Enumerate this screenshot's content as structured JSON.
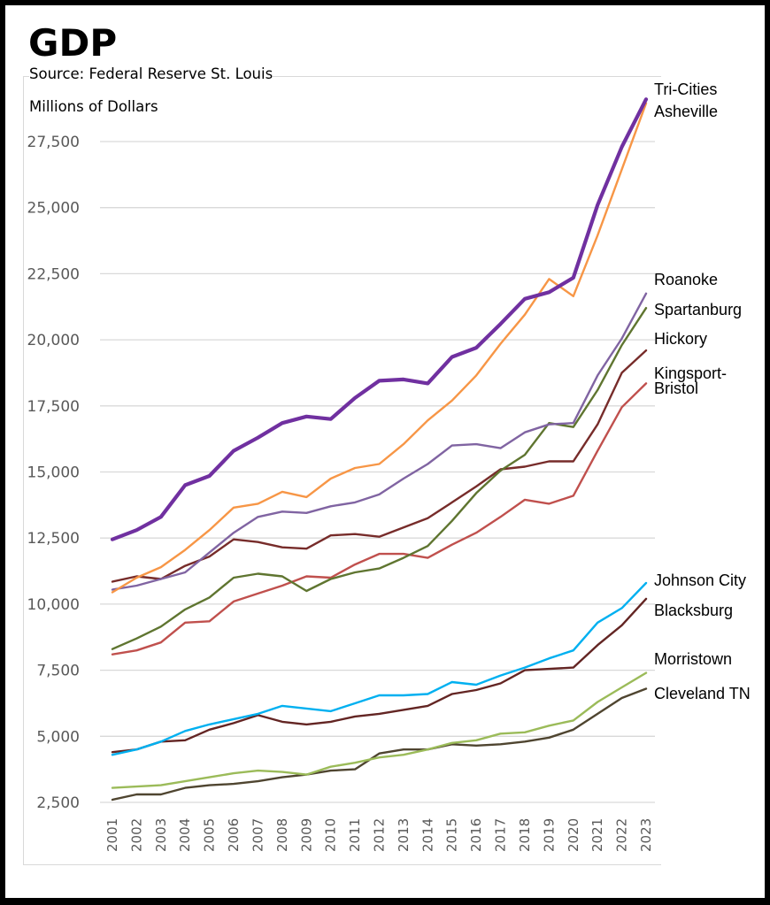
{
  "header": {
    "title": "GDP",
    "source": "Source: Federal Reserve St. Louis",
    "units": "Millions of Dollars"
  },
  "chart_data": {
    "type": "line",
    "title": "GDP",
    "subtitle": "Source: Federal Reserve St. Louis",
    "xlabel": "",
    "ylabel": "Millions of Dollars",
    "ylim": [
      2500,
      30000
    ],
    "yticks": [
      2500,
      5000,
      7500,
      10000,
      12500,
      15000,
      17500,
      20000,
      22500,
      25000,
      27500
    ],
    "ytick_labels": [
      "2,500",
      "5,000",
      "7,500",
      "10,000",
      "12,500",
      "15,000",
      "17,500",
      "20,000",
      "22,500",
      "25,000",
      "27,500"
    ],
    "grid": true,
    "legend": "direct labels at right end of each line",
    "x": [
      "2001",
      "2002",
      "2003",
      "2004",
      "2005",
      "2006",
      "2007",
      "2008",
      "2009",
      "2010",
      "2011",
      "2012",
      "2013",
      "2014",
      "2015",
      "2016",
      "2017",
      "2018",
      "2019",
      "2020",
      "2021",
      "2022",
      "2023"
    ],
    "series": [
      {
        "name": "Tri-Cities",
        "color": "#7030a0",
        "width": "thick",
        "label_lines": [
          "Tri-Cities"
        ],
        "values": [
          12450,
          12800,
          13300,
          14500,
          14850,
          15800,
          16300,
          16850,
          17100,
          17000,
          17800,
          18450,
          18500,
          18350,
          19350,
          19700,
          20600,
          21550,
          21800,
          22350,
          25100,
          27300,
          29100
        ]
      },
      {
        "name": "Asheville",
        "color": "#f79646",
        "width": "normal",
        "label_lines": [
          "Asheville"
        ],
        "values": [
          10450,
          11000,
          11400,
          12050,
          12800,
          13650,
          13800,
          14250,
          14050,
          14750,
          15150,
          15300,
          16050,
          16950,
          17700,
          18650,
          19850,
          20950,
          22300,
          21650,
          23950,
          26450,
          28950
        ]
      },
      {
        "name": "Roanoke",
        "color": "#8064a2",
        "width": "normal",
        "label_lines": [
          "Roanoke"
        ],
        "values": [
          10550,
          10700,
          10950,
          11200,
          11950,
          12700,
          13300,
          13500,
          13450,
          13700,
          13850,
          14150,
          14750,
          15300,
          16000,
          16050,
          15900,
          16500,
          16800,
          16850,
          18650,
          20050,
          21750
        ]
      },
      {
        "name": "Spartanburg",
        "color": "#5f7530",
        "width": "normal",
        "label_lines": [
          "Spartanburg"
        ],
        "values": [
          8300,
          8700,
          9150,
          9800,
          10250,
          11000,
          11150,
          11050,
          10500,
          10950,
          11200,
          11350,
          11750,
          12200,
          13150,
          14200,
          15050,
          15650,
          16850,
          16700,
          18100,
          19800,
          21200
        ]
      },
      {
        "name": "Hickory",
        "color": "#772c2a",
        "width": "normal",
        "label_lines": [
          "Hickory"
        ],
        "values": [
          10850,
          11050,
          10950,
          11450,
          11800,
          12450,
          12350,
          12150,
          12100,
          12600,
          12650,
          12550,
          12900,
          13250,
          13850,
          14450,
          15100,
          15200,
          15400,
          15400,
          16800,
          18750,
          19600
        ]
      },
      {
        "name": "Kingsport-Bristol",
        "color": "#c0504d",
        "width": "normal",
        "label_lines": [
          "Kingsport-",
          "Bristol"
        ],
        "values": [
          8100,
          8250,
          8550,
          9300,
          9350,
          10100,
          10400,
          10700,
          11050,
          11000,
          11500,
          11900,
          11900,
          11750,
          12250,
          12700,
          13300,
          13950,
          13800,
          14100,
          15800,
          17450,
          18350
        ]
      },
      {
        "name": "Johnson City",
        "color": "#00b0f0",
        "width": "normal",
        "label_lines": [
          "Johnson City"
        ],
        "values": [
          4300,
          4500,
          4800,
          5200,
          5450,
          5650,
          5850,
          6150,
          6050,
          5950,
          6250,
          6550,
          6550,
          6600,
          7050,
          6950,
          7300,
          7600,
          7950,
          8250,
          9300,
          9850,
          10800
        ]
      },
      {
        "name": "Blacksburg",
        "color": "#632523",
        "width": "normal",
        "label_lines": [
          "Blacksburg"
        ],
        "values": [
          4400,
          4500,
          4800,
          4850,
          5250,
          5500,
          5800,
          5550,
          5450,
          5550,
          5750,
          5850,
          6000,
          6150,
          6600,
          6750,
          7000,
          7500,
          7550,
          7600,
          8450,
          9200,
          10200
        ]
      },
      {
        "name": "Morristown",
        "color": "#9bbb59",
        "width": "normal",
        "label_lines": [
          "Morristown"
        ],
        "values": [
          3050,
          3100,
          3150,
          3300,
          3450,
          3600,
          3700,
          3650,
          3550,
          3850,
          4000,
          4200,
          4300,
          4500,
          4750,
          4850,
          5100,
          5150,
          5400,
          5600,
          6300,
          6850,
          7400
        ]
      },
      {
        "name": "Cleveland TN",
        "color": "#4f4530",
        "width": "normal",
        "label_lines": [
          "Cleveland TN"
        ],
        "values": [
          2600,
          2800,
          2800,
          3050,
          3150,
          3200,
          3300,
          3450,
          3550,
          3700,
          3750,
          4350,
          4500,
          4500,
          4700,
          4650,
          4700,
          4800,
          4950,
          5250,
          5850,
          6450,
          6800
        ]
      }
    ]
  }
}
